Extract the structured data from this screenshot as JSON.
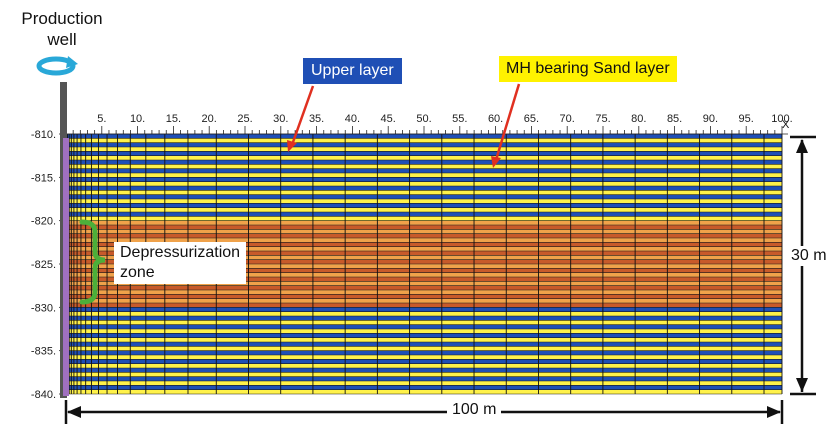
{
  "well": {
    "title": "Production\nwell"
  },
  "labels": {
    "upper_layer": "Upper layer",
    "sand_layer": "MH bearing Sand layer",
    "depressurization": "Depressurization\nzone",
    "height": "30 m",
    "width": "100 m"
  },
  "x_axis": {
    "name": "X",
    "ticks": [
      "5.",
      "10.",
      "15.",
      "20.",
      "25.",
      "30.",
      "35.",
      "40.",
      "45.",
      "50.",
      "55.",
      "60.",
      "65.",
      "70.",
      "75.",
      "80.",
      "85.",
      "90.",
      "95.",
      "100."
    ]
  },
  "y_axis": {
    "ticks": [
      "-810.",
      "-815.",
      "-820.",
      "-825.",
      "-830.",
      "-835.",
      "-840."
    ]
  },
  "colors": {
    "upper": "#1f4fb5",
    "sand": "#fff24a",
    "depress_dark": "#c85a2a",
    "depress_light": "#f0a24a",
    "well": "#555555",
    "arrow": "#e03020",
    "brace": "#4caf3a",
    "swirl": "#29a8d8"
  }
}
